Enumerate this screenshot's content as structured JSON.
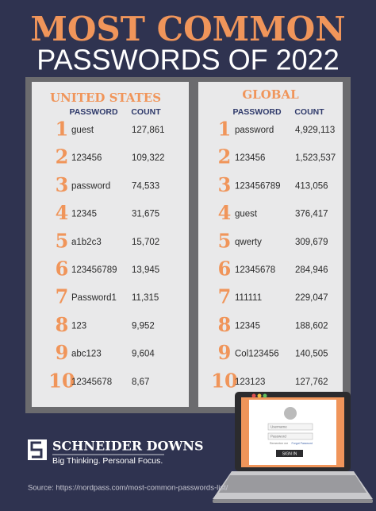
{
  "header": {
    "title": "MOST COMMON",
    "subtitle": "PASSWORDS OF 2022"
  },
  "tables": [
    {
      "heading": "UNITED STATES",
      "columns": [
        "PASSWORD",
        "COUNT"
      ],
      "rows": [
        [
          1,
          "guest",
          "127,861"
        ],
        [
          2,
          "123456",
          "109,322"
        ],
        [
          3,
          "password",
          "74,533"
        ],
        [
          4,
          "12345",
          "31,675"
        ],
        [
          5,
          "a1b2c3",
          "15,702"
        ],
        [
          6,
          "123456789",
          "13,945"
        ],
        [
          7,
          "Password1",
          "11,315"
        ],
        [
          8,
          "123",
          "9,952"
        ],
        [
          9,
          "abc123",
          "9,604"
        ],
        [
          10,
          "12345678",
          "8,67"
        ]
      ]
    },
    {
      "heading": "GLOBAL",
      "columns": [
        "PASSWORD",
        "COUNT"
      ],
      "rows": [
        [
          1,
          "password",
          "4,929,113"
        ],
        [
          2,
          "123456",
          "1,523,537"
        ],
        [
          3,
          "123456789",
          "413,056"
        ],
        [
          4,
          "guest",
          "376,417"
        ],
        [
          5,
          "qwerty",
          "309,679"
        ],
        [
          6,
          "12345678",
          "284,946"
        ],
        [
          7,
          "111111",
          "229,047"
        ],
        [
          8,
          "12345",
          "188,602"
        ],
        [
          9,
          "Col123456",
          "140,505"
        ],
        [
          10,
          "123123",
          "127,762"
        ]
      ]
    }
  ],
  "laptop": {
    "username": "Username",
    "password": "Password",
    "remember": "Remember me",
    "forgot": "Forgot Password",
    "button": "SIGN IN"
  },
  "logo": {
    "name": "SCHNEIDER DOWNS",
    "tagline": "Big Thinking. Personal Focus."
  },
  "source": "Source: https://nordpass.com/most-common-passwords-list/"
}
